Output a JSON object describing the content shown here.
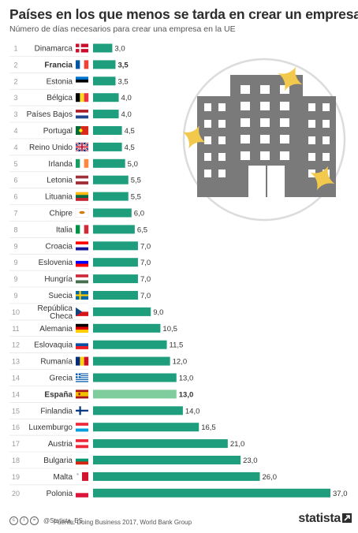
{
  "title": "Países en los que menos se tarda en crear un empresa",
  "subtitle": "Número de días necesarios para crear una empresa en la UE",
  "colors": {
    "bar": "#1f9e7e",
    "highlight": "#7fcc9c",
    "rank": "#9a9a9a",
    "icon": "#7a7a7a",
    "spark": "#f2c94c"
  },
  "chart_data": {
    "type": "bar",
    "orientation": "horizontal",
    "categories": [
      "Dinamarca",
      "Francia",
      "Estonia",
      "Bélgica",
      "Países Bajos",
      "Portugal",
      "Reino Unido",
      "Irlanda",
      "Letonia",
      "Lituania",
      "Chipre",
      "Italia",
      "Croacia",
      "Eslovenia",
      "Hungría",
      "Suecia",
      "República Checa",
      "Alemania",
      "Eslovaquia",
      "Rumanía",
      "Grecia",
      "España",
      "Finlandia",
      "Luxemburgo",
      "Austria",
      "Bulgaria",
      "Malta",
      "Polonia"
    ],
    "ranks": [
      "1",
      "2",
      "2",
      "3",
      "3",
      "4",
      "4",
      "5",
      "6",
      "6",
      "7",
      "8",
      "9",
      "9",
      "9",
      "9",
      "10",
      "11",
      "12",
      "13",
      "14",
      "14",
      "15",
      "16",
      "17",
      "18",
      "19",
      "20"
    ],
    "values": [
      3.0,
      3.5,
      3.5,
      4.0,
      4.0,
      4.5,
      4.5,
      5.0,
      5.5,
      5.5,
      6.0,
      6.5,
      7.0,
      7.0,
      7.0,
      7.0,
      9.0,
      10.5,
      11.5,
      12.0,
      13.0,
      13.0,
      14.0,
      16.5,
      21.0,
      23.0,
      26.0,
      37.0
    ],
    "value_labels": [
      "3,0",
      "3,5",
      "3,5",
      "4,0",
      "4,0",
      "4,5",
      "4,5",
      "5,0",
      "5,5",
      "5,5",
      "6,0",
      "6,5",
      "7,0",
      "7,0",
      "7,0",
      "7,0",
      "9,0",
      "10,5",
      "11,5",
      "12,0",
      "13,0",
      "13,0",
      "14,0",
      "16,5",
      "21,0",
      "23,0",
      "26,0",
      "37,0"
    ],
    "highlight": [
      "España"
    ],
    "bold_labels": [
      "Francia",
      "España"
    ],
    "xlim": [
      0,
      37
    ]
  },
  "footer": {
    "handle": "@Statista_ES",
    "source": "Fuente: Doing Business 2017, World Bank Group",
    "brand": "statista"
  }
}
